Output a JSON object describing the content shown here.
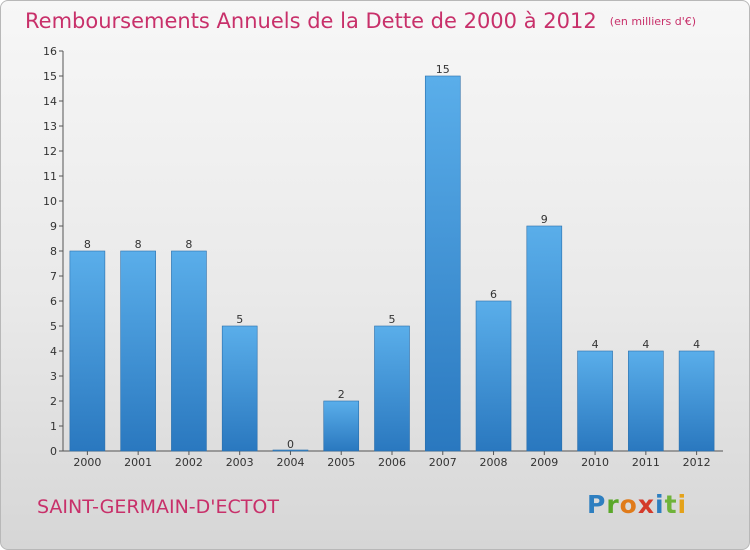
{
  "header": {
    "title": "Remboursements Annuels de la Dette de 2000 à 2012",
    "unit": "(en milliers d'€)"
  },
  "footer": {
    "commune": "SAINT-GERMAIN-D'ECTOT",
    "brand": [
      "P",
      "r",
      "o",
      "x",
      "i",
      "t",
      "i"
    ]
  },
  "colors": {
    "bar": "#3a8fd6",
    "title": "#c8306a"
  },
  "chart_data": {
    "type": "bar",
    "categories": [
      "2000",
      "2001",
      "2002",
      "2003",
      "2004",
      "2005",
      "2006",
      "2007",
      "2008",
      "2009",
      "2010",
      "2011",
      "2012"
    ],
    "values": [
      8,
      8,
      8,
      5,
      0,
      2,
      5,
      15,
      6,
      9,
      4,
      4,
      4
    ],
    "title": "Remboursements Annuels de la Dette de 2000 à 2012",
    "ylim": [
      0,
      16
    ],
    "yticks": [
      0,
      1,
      2,
      3,
      4,
      5,
      6,
      7,
      8,
      9,
      10,
      11,
      12,
      13,
      14,
      15,
      16
    ],
    "data_labels": true
  }
}
